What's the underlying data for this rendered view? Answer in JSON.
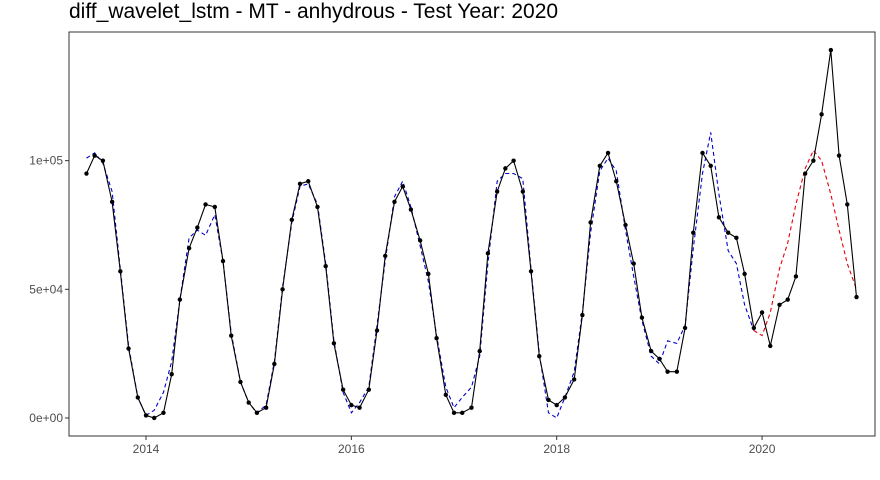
{
  "chart_data": {
    "type": "line",
    "title": "diff_wavelet_lstm - MT - anhydrous - Test Year: 2020",
    "xlabel": "",
    "ylabel": "",
    "x_ticks": [
      {
        "label": "2014",
        "value": 2014
      },
      {
        "label": "2016",
        "value": 2016
      },
      {
        "label": "2018",
        "value": 2018
      },
      {
        "label": "2020",
        "value": 2020
      }
    ],
    "y_ticks": [
      {
        "label": "0e+00",
        "value": 0
      },
      {
        "label": "5e+04",
        "value": 50000
      },
      {
        "label": "1e+05",
        "value": 100000
      }
    ],
    "xlim": [
      2013.25,
      2021.1
    ],
    "ylim": [
      -7000,
      150000
    ],
    "grid": false,
    "legend": "none",
    "colors": {
      "actual": "#000000",
      "fitted": "#0000cc",
      "forecast": "#e8000b"
    },
    "series": [
      {
        "key": "actual",
        "style": "solid-with-points",
        "x": [
          2013.42,
          2013.5,
          2013.58,
          2013.67,
          2013.75,
          2013.83,
          2013.92,
          2014.0,
          2014.08,
          2014.17,
          2014.25,
          2014.33,
          2014.42,
          2014.5,
          2014.58,
          2014.67,
          2014.75,
          2014.83,
          2014.92,
          2015.0,
          2015.08,
          2015.17,
          2015.25,
          2015.33,
          2015.42,
          2015.5,
          2015.58,
          2015.67,
          2015.75,
          2015.83,
          2015.92,
          2016.0,
          2016.08,
          2016.17,
          2016.25,
          2016.33,
          2016.42,
          2016.5,
          2016.58,
          2016.67,
          2016.75,
          2016.83,
          2016.92,
          2017.0,
          2017.08,
          2017.17,
          2017.25,
          2017.33,
          2017.42,
          2017.5,
          2017.58,
          2017.67,
          2017.75,
          2017.83,
          2017.92,
          2018.0,
          2018.08,
          2018.17,
          2018.25,
          2018.33,
          2018.42,
          2018.5,
          2018.58,
          2018.67,
          2018.75,
          2018.83,
          2018.92,
          2019.0,
          2019.08,
          2019.17,
          2019.25,
          2019.33,
          2019.42,
          2019.5,
          2019.58,
          2019.67,
          2019.75,
          2019.83,
          2019.92,
          2020.0,
          2020.08,
          2020.17,
          2020.25,
          2020.33,
          2020.42,
          2020.5,
          2020.58,
          2020.67,
          2020.75,
          2020.83,
          2020.92
        ],
        "y": [
          95000,
          102000,
          100000,
          84000,
          57000,
          27000,
          8000,
          1000,
          0,
          2000,
          17000,
          46000,
          66000,
          74000,
          83000,
          82000,
          61000,
          32000,
          14000,
          6000,
          2000,
          4000,
          21000,
          50000,
          77000,
          91000,
          92000,
          82000,
          59000,
          29000,
          11000,
          5000,
          4000,
          11000,
          34000,
          63000,
          84000,
          90000,
          81000,
          69000,
          56000,
          31000,
          9000,
          2000,
          2000,
          4000,
          26000,
          64000,
          88000,
          97000,
          100000,
          88000,
          57000,
          24000,
          7000,
          5000,
          8000,
          15000,
          40000,
          76000,
          98000,
          103000,
          92000,
          75000,
          60000,
          39000,
          26000,
          23000,
          18000,
          18000,
          35000,
          72000,
          103000,
          98000,
          78000,
          72000,
          70000,
          56000,
          35000,
          41000,
          28000,
          44000,
          46000,
          55000,
          95000,
          100000,
          118000,
          143000,
          102000,
          83000,
          47000
        ]
      },
      {
        "key": "fitted",
        "style": "dashed",
        "x": [
          2013.42,
          2013.5,
          2013.58,
          2013.67,
          2013.75,
          2013.83,
          2013.92,
          2014.0,
          2014.08,
          2014.17,
          2014.25,
          2014.33,
          2014.42,
          2014.5,
          2014.58,
          2014.67,
          2014.75,
          2014.83,
          2014.92,
          2015.0,
          2015.08,
          2015.17,
          2015.25,
          2015.33,
          2015.42,
          2015.5,
          2015.58,
          2015.67,
          2015.75,
          2015.83,
          2015.92,
          2016.0,
          2016.08,
          2016.17,
          2016.25,
          2016.33,
          2016.42,
          2016.5,
          2016.58,
          2016.67,
          2016.75,
          2016.83,
          2016.92,
          2017.0,
          2017.08,
          2017.17,
          2017.25,
          2017.33,
          2017.42,
          2017.5,
          2017.58,
          2017.67,
          2017.75,
          2017.83,
          2017.92,
          2018.0,
          2018.08,
          2018.17,
          2018.25,
          2018.33,
          2018.42,
          2018.5,
          2018.58,
          2018.67,
          2018.75,
          2018.83,
          2018.92,
          2019.0,
          2019.08,
          2019.17,
          2019.25,
          2019.33,
          2019.42,
          2019.5,
          2019.58,
          2019.67,
          2019.75,
          2019.83,
          2019.92
        ],
        "y": [
          101000,
          103000,
          99000,
          88000,
          58000,
          28000,
          8000,
          1000,
          3000,
          10000,
          22000,
          46000,
          70000,
          73000,
          71000,
          79000,
          61000,
          33000,
          14000,
          6000,
          2000,
          5000,
          22000,
          51000,
          76000,
          90000,
          91000,
          83000,
          60000,
          30000,
          10000,
          2000,
          6000,
          12000,
          36000,
          61000,
          86000,
          92000,
          82000,
          67000,
          53000,
          32000,
          12000,
          4000,
          8000,
          12000,
          24000,
          60000,
          92000,
          95000,
          95000,
          93000,
          58000,
          25000,
          2000,
          0,
          8000,
          18000,
          41000,
          72000,
          96000,
          101000,
          96000,
          73000,
          55000,
          38000,
          24000,
          21000,
          30000,
          29000,
          36000,
          66000,
          95000,
          111000,
          87000,
          65000,
          60000,
          44000,
          34000
        ]
      },
      {
        "key": "forecast",
        "style": "dashed",
        "x": [
          2019.92,
          2020.0,
          2020.08,
          2020.17,
          2020.25,
          2020.33,
          2020.42,
          2020.5,
          2020.58,
          2020.67,
          2020.75,
          2020.83,
          2020.92
        ],
        "y": [
          34000,
          32000,
          41000,
          58000,
          68000,
          83000,
          97000,
          104000,
          100000,
          87000,
          73000,
          60000,
          50000
        ]
      }
    ]
  }
}
